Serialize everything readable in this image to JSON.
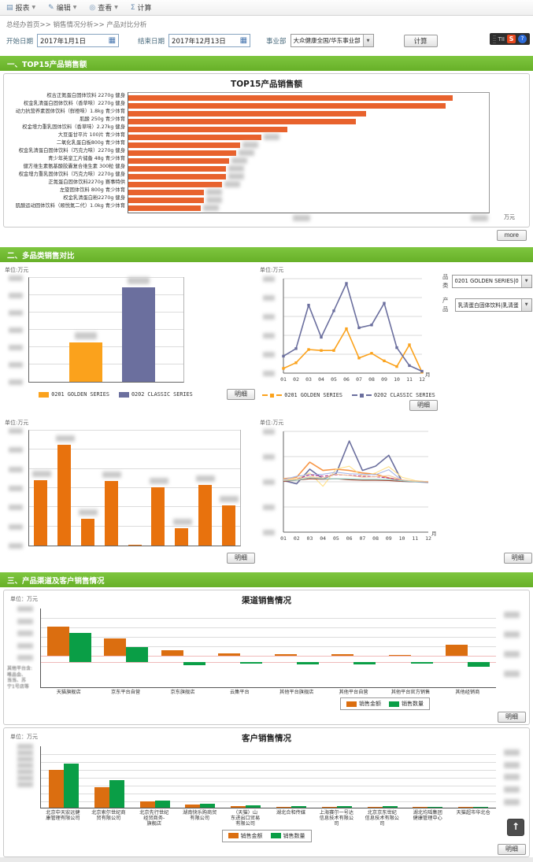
{
  "toolbar": {
    "items": [
      {
        "label": "报表",
        "icon": "report-icon",
        "glyph": "▤",
        "caret": true
      },
      {
        "label": "编辑",
        "icon": "edit-icon",
        "glyph": "✎",
        "caret": true
      },
      {
        "label": "查看",
        "icon": "view-icon",
        "glyph": "◎",
        "caret": true
      },
      {
        "label": "计算",
        "icon": "sigma-icon",
        "glyph": "Σ",
        "caret": false
      }
    ]
  },
  "breadcrumb": "总经办首页>> 销售情况分析>> 产品对比分析",
  "filters": {
    "start_label": "开始日期",
    "start_value": "2017年1月1日",
    "end_label": "结束日期",
    "end_value": "2017年12月13日",
    "bu_label": "事业部",
    "bu_value": "大众健康全国/华东事业部",
    "calc_button": "计算"
  },
  "overlay_widget": {
    "text": "TII",
    "share_icon": "S",
    "help_icon": "?"
  },
  "back_to_top_icon": "↑",
  "sections": [
    {
      "title": "一、TOP15产品销售额",
      "more_button": "more"
    },
    {
      "title": "二、多品类销售对比",
      "cat_label": "品类",
      "cat_value": "0201 GOLDEN SERIES|0",
      "prod_label": "产品",
      "prod_value": "乳清蛋白固体饮料|乳清蛋"
    },
    {
      "title": "三、产品渠道及客户销售情况"
    }
  ],
  "chart_data": [
    {
      "id": "top15",
      "type": "bar",
      "orientation": "horizontal",
      "title": "TOP15产品销售额",
      "xlabel": "万元",
      "bar_color": "#E8622D",
      "value_labels": "blurred",
      "axis_ticks": "blurred",
      "categories": [
        "权古正氮蛋白固体饮料 2270g 健身",
        "权金乳清蛋白固体饮料（香草味）2270g 健身",
        "动力抗营养素固体饮料（鲜橙味）1.8kg 青少体育",
        "肌酸 250g 青少体育",
        "权金增力重乳固体饮料（香草味）2.27kg 健身",
        "大豆蛋甘平片 100片 青少体育",
        "二氧化乳蛋白板800g 青少体育",
        "权金乳清蛋白固体饮料（巧克力味）2270g 健身",
        "青少年英皇工片储备 48g 青少体育",
        "健方维生素氨基酸胶囊复合维生素 300粒 健身",
        "权金增力重乳固体饮料（巧克力味）2270g 健身",
        "正氮蛋白固体饮料2270g 赛事特供",
        "左旋固体饮料 800g 青少体育",
        "权金乳清蛋白粉2270g 健身",
        "肌酸运动固体饮料（顺悦氮二代）1.0kg 青少体育"
      ],
      "values_pct_of_axis": [
        90,
        88,
        66,
        63,
        44,
        37,
        31,
        30,
        28,
        27,
        27,
        26,
        21,
        21,
        20
      ]
    },
    {
      "id": "category-compare-bar",
      "type": "bar",
      "unit": "单位:万元",
      "grid_divisions": 6,
      "axis_ticks": "blurred",
      "value_labels": "blurred",
      "series": [
        {
          "name": "0201 GOLDEN SERIES",
          "color": "#FBA21C",
          "value_pct_of_axis": 38
        },
        {
          "name": "0202 CLASSIC SERIES",
          "color": "#6B6F9E",
          "value_pct_of_axis": 91
        }
      ],
      "detail_button": "明细"
    },
    {
      "id": "category-trend-line",
      "type": "line",
      "unit": "单位:万元",
      "xlabel": "月",
      "x": [
        "01",
        "02",
        "03",
        "04",
        "05",
        "06",
        "07",
        "08",
        "09",
        "10",
        "11",
        "12"
      ],
      "grid_divisions": 5,
      "axis_ticks": "blurred",
      "series": [
        {
          "name": "0201 GOLDEN SERIES",
          "color": "#FBA21C",
          "values_pct_of_axis": [
            5,
            11,
            25,
            24,
            24,
            47,
            16,
            21,
            13,
            7,
            30,
            1
          ]
        },
        {
          "name": "0202 CLASSIC SERIES",
          "color": "#6B6F9E",
          "values_pct_of_axis": [
            18,
            26,
            72,
            38,
            66,
            95,
            48,
            51,
            74,
            27,
            8,
            2
          ]
        }
      ],
      "detail_button": "明细"
    },
    {
      "id": "product-bar",
      "type": "bar",
      "unit": "单位:万元",
      "grid_divisions": 6,
      "axis_ticks": "blurred",
      "value_labels": "blurred",
      "bar_color": "#E8720D",
      "values_pct_of_axis": [
        57,
        88,
        23,
        56,
        1,
        51,
        15,
        53,
        35
      ],
      "detail_button": "明细"
    },
    {
      "id": "product-trend-line",
      "type": "line",
      "unit": "单位:万元",
      "xlabel": "月",
      "x": [
        "01",
        "02",
        "03",
        "04",
        "05",
        "06",
        "07",
        "08",
        "09",
        "10",
        "11",
        "12"
      ],
      "grid_divisions": 4,
      "ylim": [
        -2,
        2
      ],
      "axis_ticks": "blurred",
      "series": [
        {
          "name": "series-slate",
          "color": "#6B6F9E",
          "values": [
            0.05,
            -0.08,
            0.5,
            0.12,
            0.32,
            1.62,
            0.45,
            0.62,
            1.05,
            0.02,
            0,
            -0.02
          ]
        },
        {
          "name": "series-orange",
          "color": "#F79646",
          "values": [
            0.12,
            0.18,
            0.78,
            0.45,
            0.5,
            0.45,
            0.35,
            0.3,
            0.15,
            0.05,
            0.02,
            0
          ]
        },
        {
          "name": "series-pale-yellow",
          "color": "#FFE08A",
          "values": [
            0.1,
            0.12,
            0.35,
            -0.18,
            0.5,
            0.62,
            0.22,
            0.35,
            0.6,
            0.18,
            0.05,
            0
          ]
        },
        {
          "name": "series-light-blue",
          "color": "#A8B8E8",
          "values": [
            0.08,
            0.22,
            0.28,
            0.3,
            0.38,
            0.32,
            0.3,
            0.28,
            0.48,
            0.05,
            0.02,
            0
          ]
        },
        {
          "name": "series-magenta",
          "color": "#B3308E",
          "dash": true,
          "values": [
            0.05,
            0.1,
            0.28,
            0.22,
            0.28,
            0.26,
            0.22,
            0.2,
            0.15,
            0.05,
            0,
            0
          ]
        },
        {
          "name": "series-dark-red",
          "color": "#9E3A26",
          "values": [
            0.02,
            0.06,
            0.12,
            0.1,
            0.12,
            0.08,
            0.06,
            0.06,
            0.05,
            0.02,
            0,
            0
          ]
        },
        {
          "name": "series-teal",
          "color": "#8FD8CE",
          "values": [
            0.05,
            0.06,
            0.16,
            0.12,
            0.12,
            0.12,
            0.1,
            0.1,
            0.1,
            0.04,
            0,
            0
          ]
        },
        {
          "name": "series-peach",
          "color": "#F2C49B",
          "values": [
            0.06,
            0.1,
            0.2,
            0.15,
            0.3,
            0.25,
            0.18,
            0.2,
            0.25,
            0.08,
            0.02,
            0
          ]
        }
      ],
      "detail_button": "明细"
    },
    {
      "id": "channel-sales",
      "type": "bar",
      "title": "渠道销售情况",
      "unit": "单位：万元",
      "dual_axis": true,
      "axis_ticks": "blurred",
      "categories": [
        "天猫旗舰店",
        "京东平台自营",
        "京东旗舰店",
        "云集平台",
        "其他平台旗舰店",
        "其他平台自营",
        "其他平台官方销售",
        "其他经销商"
      ],
      "series": [
        {
          "name": "销售金额",
          "color": "#DB6E10",
          "values_pct_of_axis": [
            62,
            37,
            12,
            5,
            4,
            3,
            2,
            23
          ]
        },
        {
          "name": "销售数量",
          "color": "#0A9E46",
          "values_pct_of_axis": [
            54,
            28,
            -6,
            -2,
            -4,
            -4,
            -2,
            -9
          ]
        }
      ],
      "footnote_lines": [
        "其他平台含:",
        "唯品会、",
        "当当、苏",
        "宁1号店等"
      ],
      "detail_button": "明细"
    },
    {
      "id": "customer-sales",
      "type": "bar",
      "title": "客户销售情况",
      "unit": "单位：万元",
      "axis_ticks": "blurred",
      "categories": [
        "北京中天宏远健\n康管理有限公司",
        "北京索尔世纪商\n贸有限公司",
        "北京先行世纪\n经贸商务-\n旗舰店",
        "湖南快乐购商贸\n有限公司",
        "（天猫）山\n东进出口贸易\n有限公司",
        "湖北合和传媒",
        "上海赛尔一号达\n信息技术有限公\n司",
        "北京京东世纪\n信息技术有限公\n司",
        "湖北均瑶集团\n健康管理中心",
        "天猫超市华北仓"
      ],
      "series": [
        {
          "name": "销售金额",
          "color": "#DB6E10",
          "values_pct_of_axis": [
            62,
            33,
            10,
            5,
            3,
            2,
            2,
            2,
            1,
            1
          ]
        },
        {
          "name": "销售数量",
          "color": "#0A9E46",
          "values_pct_of_axis": [
            72,
            45,
            12,
            7,
            4,
            3,
            3,
            3,
            2,
            2
          ]
        }
      ],
      "detail_button": "明细"
    }
  ]
}
